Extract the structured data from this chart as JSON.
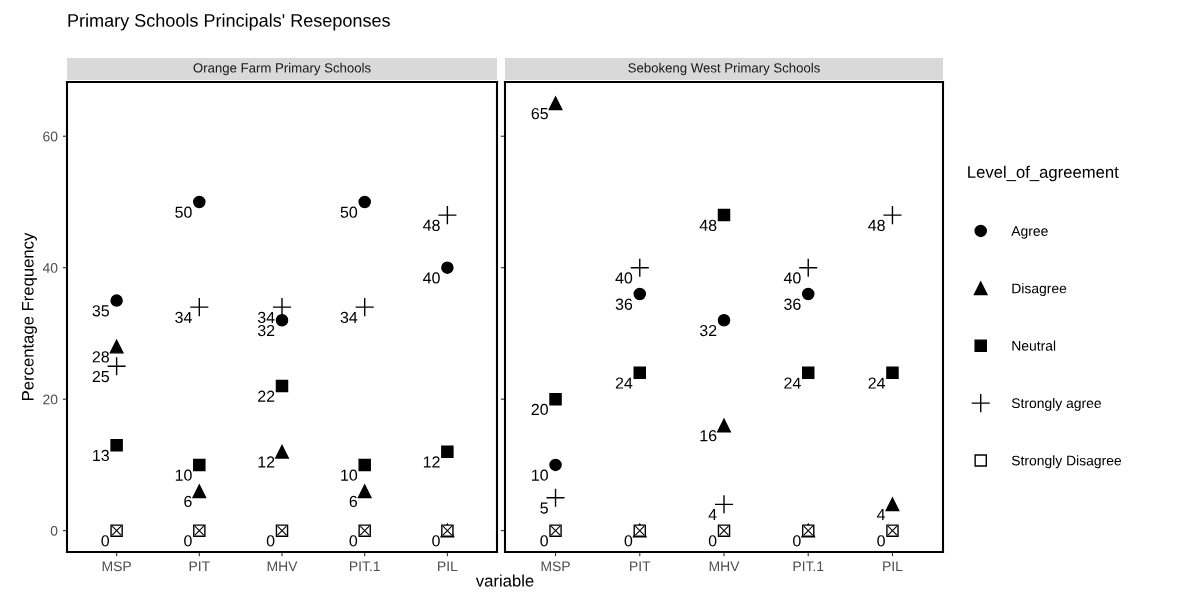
{
  "chart_data": [
    {
      "type": "scatter",
      "title": "Primary Schools Principals' Reseponses",
      "subtitle": "Orange Farm Primary Schools",
      "xlabel": "variable",
      "ylabel": "Percentage Frequency",
      "categories": [
        "MSP",
        "PIT",
        "MHV",
        "PIT.1",
        "PIL"
      ],
      "series": [
        {
          "color": "#000000",
          "marker": "circle",
          "values": [
            35,
            50,
            32,
            50,
            40
          ],
          "value_labels": [
            "35",
            "50",
            "32",
            "50",
            "40"
          ]
        },
        {
          "color": "#000000",
          "marker": "triangle",
          "values": [
            28,
            6,
            12,
            6,
            0
          ],
          "value_labels": [
            "28",
            "6",
            "12",
            "6",
            null
          ]
        },
        {
          "color": "#000000",
          "marker": "square",
          "values": [
            13,
            10,
            22,
            10,
            12
          ],
          "value_labels": [
            "13",
            "10",
            "22",
            "10",
            "12"
          ]
        },
        {
          "color": "#000000",
          "marker": "cross",
          "values": [
            25,
            34,
            34,
            34,
            48
          ],
          "value_labels": [
            "25",
            "34",
            "34",
            "34",
            "48"
          ]
        },
        {
          "color": "#ffffff",
          "marker": "square",
          "values": [
            0,
            0,
            0,
            0,
            0
          ],
          "value_labels": [
            "0",
            "0",
            "0",
            "0",
            "0"
          ]
        }
      ],
      "ylim": [
        -3.25,
        68.25
      ],
      "yticks": [
        0,
        20,
        40,
        60
      ],
      "grid": false,
      "legend": false
    },
    {
      "type": "scatter",
      "subtitle": "Sebokeng West Primary Schools",
      "legend_title": "Level_of_agreement",
      "categories": [
        "MSP",
        "PIT",
        "MHV",
        "PIT.1",
        "PIL"
      ],
      "series": [
        {
          "name": "Agree",
          "color": "#000000",
          "marker": "circle",
          "values": [
            10,
            36,
            32,
            36,
            null
          ],
          "value_labels": [
            "10",
            "36",
            "32",
            "36",
            null
          ]
        },
        {
          "name": "Disagree",
          "color": "#000000",
          "marker": "triangle",
          "values": [
            65,
            0,
            16,
            0,
            4
          ],
          "value_labels": [
            "65",
            null,
            "16",
            null,
            "4"
          ]
        },
        {
          "name": "Neutral",
          "color": "#000000",
          "marker": "square",
          "values": [
            20,
            24,
            48,
            24,
            24
          ],
          "value_labels": [
            "20",
            "24",
            "48",
            "24",
            "24"
          ]
        },
        {
          "name": "Strongly agree",
          "color": "#000000",
          "marker": "cross",
          "values": [
            5,
            40,
            4,
            40,
            48
          ],
          "value_labels": [
            "5",
            "40",
            "4",
            "40",
            "48"
          ]
        },
        {
          "name": "Strongly Disagree",
          "color": "#ffffff",
          "marker": "square",
          "values": [
            0,
            0,
            0,
            0,
            0
          ],
          "value_labels": [
            "0",
            "0",
            "0",
            "0",
            "0"
          ]
        }
      ],
      "ylim": [
        -3.25,
        68.25
      ],
      "yticks": [
        0,
        20,
        40,
        60
      ],
      "tick_labels": "x",
      "grid": false,
      "legend": "right"
    }
  ]
}
